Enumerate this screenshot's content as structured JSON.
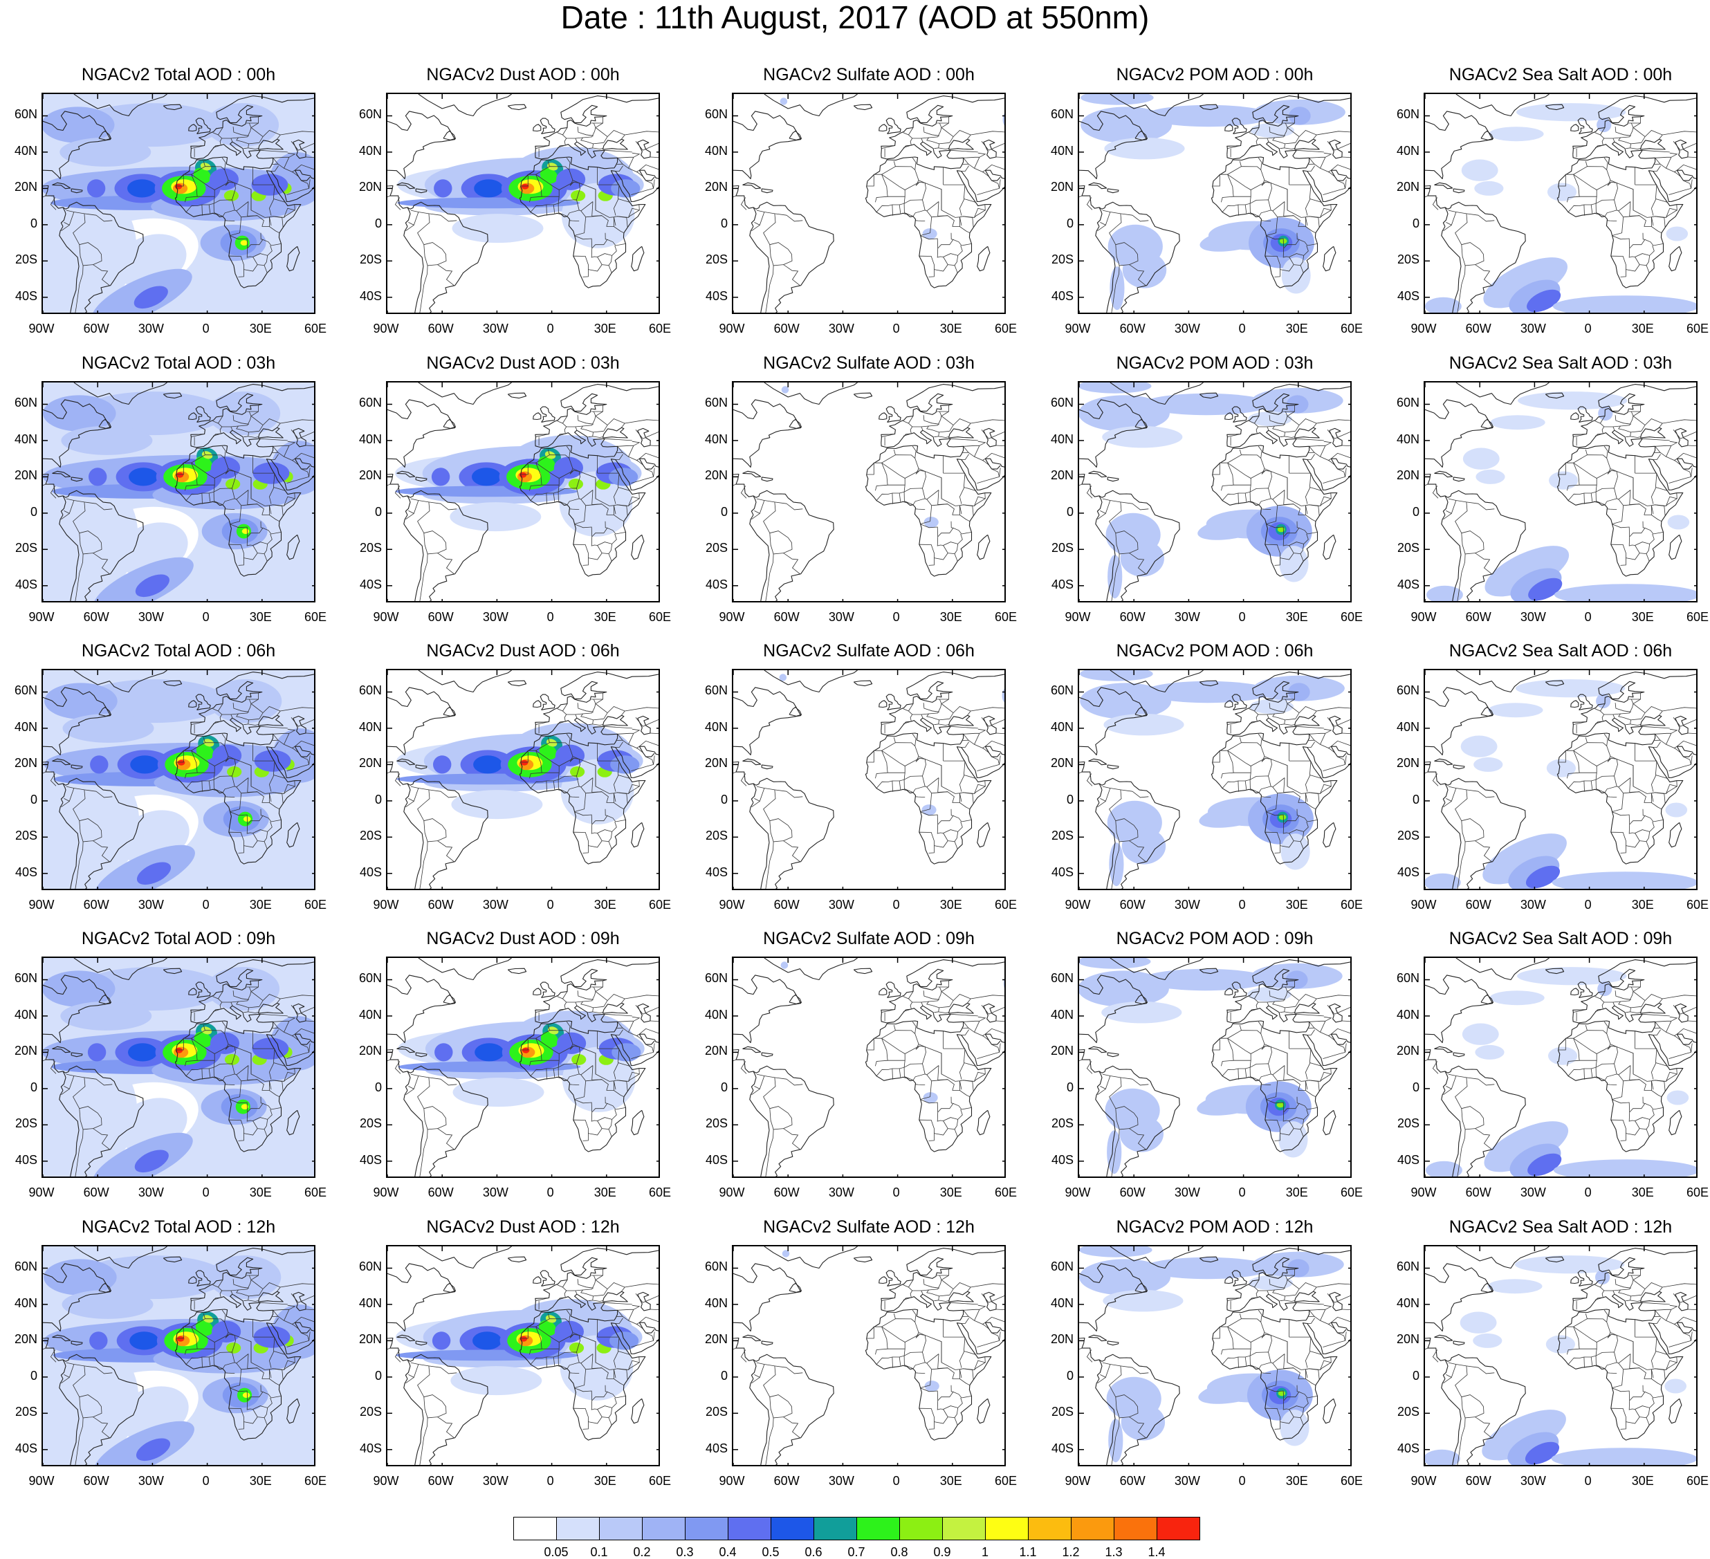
{
  "title": "Date : 11th August, 2017 (AOD at 550nm)",
  "panels": [
    [
      {
        "title": "NGACv2 Total AOD : 00h",
        "species": "total"
      },
      {
        "title": "NGACv2 Dust AOD : 00h",
        "species": "dust"
      },
      {
        "title": "NGACv2 Sulfate AOD : 00h",
        "species": "sulfate"
      },
      {
        "title": "NGACv2 POM AOD : 00h",
        "species": "pom"
      },
      {
        "title": "NGACv2 Sea Salt AOD : 00h",
        "species": "seasalt"
      }
    ],
    [
      {
        "title": "NGACv2 Total AOD : 03h",
        "species": "total"
      },
      {
        "title": "NGACv2 Dust AOD : 03h",
        "species": "dust"
      },
      {
        "title": "NGACv2 Sulfate AOD : 03h",
        "species": "sulfate"
      },
      {
        "title": "NGACv2 POM AOD : 03h",
        "species": "pom"
      },
      {
        "title": "NGACv2 Sea Salt AOD : 03h",
        "species": "seasalt"
      }
    ],
    [
      {
        "title": "NGACv2 Total AOD : 06h",
        "species": "total"
      },
      {
        "title": "NGACv2 Dust AOD : 06h",
        "species": "dust"
      },
      {
        "title": "NGACv2 Sulfate AOD : 06h",
        "species": "sulfate"
      },
      {
        "title": "NGACv2 POM AOD : 06h",
        "species": "pom"
      },
      {
        "title": "NGACv2 Sea Salt AOD : 06h",
        "species": "seasalt"
      }
    ],
    [
      {
        "title": "NGACv2 Total AOD : 09h",
        "species": "total"
      },
      {
        "title": "NGACv2 Dust AOD : 09h",
        "species": "dust"
      },
      {
        "title": "NGACv2 Sulfate AOD : 09h",
        "species": "sulfate"
      },
      {
        "title": "NGACv2 POM AOD : 09h",
        "species": "pom"
      },
      {
        "title": "NGACv2 Sea Salt  AOD : 09h",
        "species": "seasalt"
      }
    ],
    [
      {
        "title": "NGACv2 Total AOD  : 12h",
        "species": "total"
      },
      {
        "title": "NGACv2 Dust AOD : 12h",
        "species": "dust"
      },
      {
        "title": "NGACv2 Sulfate AOD : 12h",
        "species": "sulfate"
      },
      {
        "title": "NGACv2 POM  AOD : 12h",
        "species": "pom"
      },
      {
        "title": "NGACv2 Sea Salt  AOD : 12h",
        "species": "seasalt"
      }
    ]
  ],
  "lat_labels": [
    "60N",
    "40N",
    "20N",
    "0",
    "20S",
    "40S"
  ],
  "lat_values": [
    60,
    40,
    20,
    0,
    -20,
    -40
  ],
  "lon_labels": [
    "90W",
    "60W",
    "30W",
    "0",
    "30E",
    "60E"
  ],
  "lon_values": [
    -90,
    -60,
    -30,
    0,
    30,
    60
  ],
  "map_extent": {
    "lon": [
      -90,
      60
    ],
    "lat": [
      -50,
      72
    ]
  },
  "colorbar": {
    "labels": [
      "0.05",
      "0.1",
      "0.2",
      "0.3",
      "0.4",
      "0.5",
      "0.6",
      "0.7",
      "0.8",
      "0.9",
      "1",
      "1.1",
      "1.2",
      "1.3",
      "1.4"
    ],
    "colors": [
      "#ffffff",
      "#d5e0fb",
      "#b9c9f8",
      "#9fb3f5",
      "#8099f2",
      "#5f6ff0",
      "#1d57e8",
      "#119e9a",
      "#2df21b",
      "#8cef13",
      "#c4f240",
      "#fefe13",
      "#fcbc0f",
      "#fb9a0e",
      "#fa720c",
      "#f8240e"
    ]
  }
}
